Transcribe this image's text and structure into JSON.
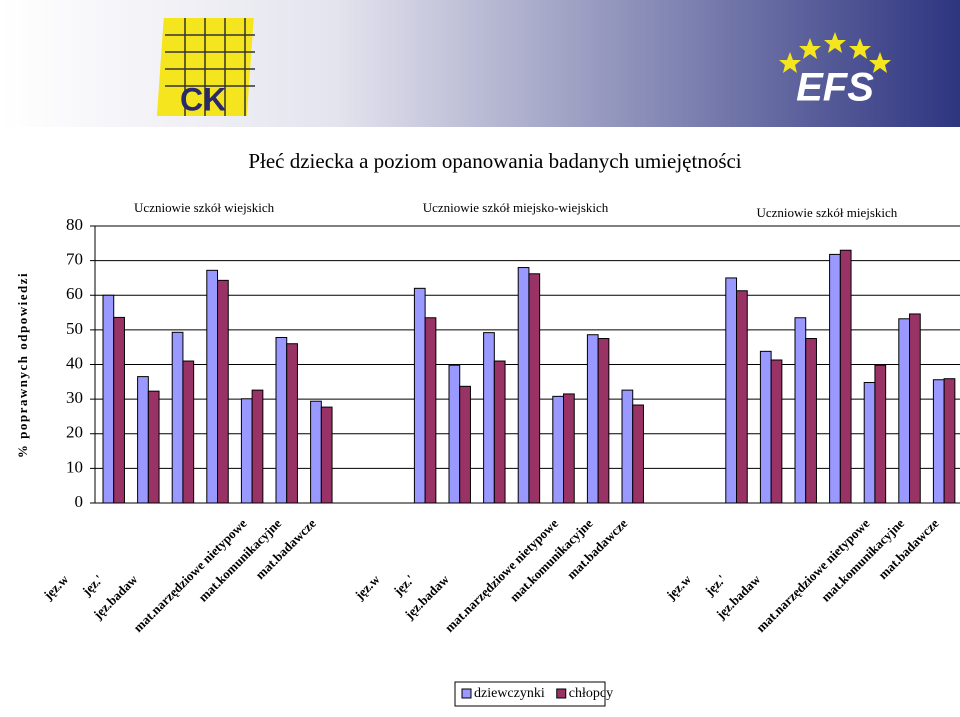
{
  "header": {
    "logo_left": "CK",
    "logo_right": "EFS"
  },
  "chart_data": {
    "type": "bar",
    "title": "Płeć dziecka a poziom opanowania badanych umiejętności",
    "y_label": "% poprawnych odpowiedzi",
    "groups": [
      {
        "title": "Uczniowie szkół wiejskich",
        "categories": [
          "jęz.w",
          "jęz.'",
          "jęz.badaw",
          null,
          "mat.narzędziowe nietypowe",
          "mat.komunikacyjne",
          "mat.badawcze"
        ]
      },
      {
        "title": "Uczniowie szkół miejsko-wiejskich",
        "categories": [
          "jęz.w",
          "jęz.'",
          "jęz.badaw",
          null,
          "mat.narzędziowe nietypowe",
          "mat.komunikacyjne",
          "mat.badawcze"
        ]
      },
      {
        "title": "Uczniowie szkół miejskich",
        "categories": [
          "jęz.w",
          "jęz.'",
          "jęz.badaw",
          null,
          "mat.narzędziowe nietypowe",
          "mat.komunikacyjne",
          "mat.badawcze"
        ]
      }
    ],
    "series": [
      {
        "name": "dziewczynki",
        "color": "#9999ff",
        "values": [
          60,
          36.5,
          49.3,
          67.2,
          30.1,
          47.8,
          29.4,
          62,
          39.8,
          49.2,
          68,
          30.8,
          48.6,
          32.6,
          65,
          43.8,
          53.5,
          71.8,
          34.8,
          53.2,
          35.6
        ]
      },
      {
        "name": "chłopcy",
        "color": "#993366",
        "values": [
          53.6,
          32.3,
          41,
          64.3,
          32.6,
          46,
          27.7,
          53.5,
          33.7,
          41,
          66.2,
          31.5,
          47.5,
          28.3,
          61.3,
          41.3,
          47.5,
          73,
          39.8,
          54.6,
          35.9
        ]
      }
    ],
    "ylim": [
      0,
      80
    ],
    "yticks": [
      0,
      10,
      20,
      30,
      40,
      50,
      60,
      70,
      80
    ],
    "legend": "bottom"
  }
}
